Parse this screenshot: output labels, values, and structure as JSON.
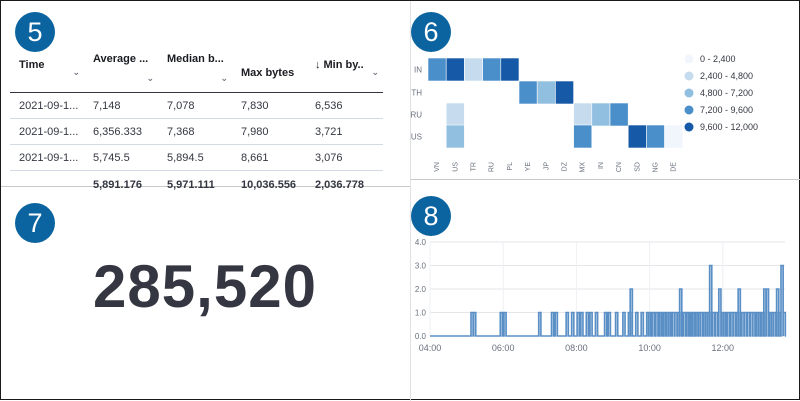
{
  "badges": {
    "table": "5",
    "heatmap": "6",
    "metric": "7",
    "line": "8"
  },
  "table": {
    "columns": [
      "Time",
      "Average ...",
      "Median b...",
      "Max bytes",
      "Min by..."
    ],
    "sort_icon": "arrow-down",
    "rows": [
      [
        "2021-09-1...",
        "7,148",
        "7,078",
        "7,830",
        "6,536"
      ],
      [
        "2021-09-1...",
        "6,356.333",
        "7,368",
        "7,980",
        "3,721"
      ],
      [
        "2021-09-1...",
        "5,745.5",
        "5,894.5",
        "8,661",
        "3,076"
      ]
    ],
    "footer": [
      "",
      "5,891.176",
      "5,971.111",
      "10,036.556",
      "2,036.778"
    ]
  },
  "heatmap": {
    "y_categories": [
      "IN",
      "TH",
      "RU",
      "US"
    ],
    "x_categories": [
      "VN",
      "US",
      "TR",
      "RU",
      "PL",
      "YE",
      "JP",
      "DZ",
      "MX",
      "IN",
      "CN",
      "SD",
      "NG",
      "DE"
    ],
    "cells": [
      {
        "row": "IN",
        "col": "VN",
        "bin": 3
      },
      {
        "row": "IN",
        "col": "US",
        "bin": 4
      },
      {
        "row": "IN",
        "col": "TR",
        "bin": 1
      },
      {
        "row": "IN",
        "col": "RU",
        "bin": 3
      },
      {
        "row": "IN",
        "col": "PL",
        "bin": 4
      },
      {
        "row": "TH",
        "col": "YE",
        "bin": 3
      },
      {
        "row": "TH",
        "col": "JP",
        "bin": 2
      },
      {
        "row": "TH",
        "col": "DZ",
        "bin": 4
      },
      {
        "row": "RU",
        "col": "US",
        "bin": 1
      },
      {
        "row": "RU",
        "col": "MX",
        "bin": 1
      },
      {
        "row": "RU",
        "col": "IN",
        "bin": 2
      },
      {
        "row": "RU",
        "col": "CN",
        "bin": 3
      },
      {
        "row": "US",
        "col": "US",
        "bin": 2
      },
      {
        "row": "US",
        "col": "MX",
        "bin": 3
      },
      {
        "row": "US",
        "col": "SD",
        "bin": 4
      },
      {
        "row": "US",
        "col": "NG",
        "bin": 3
      },
      {
        "row": "US",
        "col": "DE",
        "bin": 0
      }
    ],
    "legend": [
      "0 - 2,400",
      "2,400 - 4,800",
      "4,800 - 7,200",
      "7,200 - 9,600",
      "9,600 - 12,000"
    ],
    "colors": [
      "#f0f6fb",
      "#c6dcee",
      "#91bfe0",
      "#4a8fc9",
      "#1659a6"
    ]
  },
  "metric": {
    "value": "285,520"
  },
  "chart_data": {
    "type": "area",
    "x_ticks": [
      "04:00",
      "06:00",
      "08:00",
      "10:00",
      "12:00"
    ],
    "y_ticks": [
      "0.0",
      "1.0",
      "2.0",
      "3.0",
      "4.0"
    ],
    "ylim": [
      0,
      4
    ],
    "xlim": [
      4.0,
      13.7
    ],
    "x_unit": "hour",
    "grid": true,
    "color": "#5a8fc6",
    "spikes": [
      [
        5.15,
        1
      ],
      [
        5.22,
        1
      ],
      [
        5.95,
        1
      ],
      [
        6.05,
        1
      ],
      [
        7.0,
        1
      ],
      [
        7.35,
        1
      ],
      [
        7.45,
        1
      ],
      [
        7.75,
        1
      ],
      [
        7.9,
        1
      ],
      [
        8.05,
        1
      ],
      [
        8.15,
        1
      ],
      [
        8.3,
        1
      ],
      [
        8.4,
        1
      ],
      [
        8.55,
        1
      ],
      [
        8.8,
        1
      ],
      [
        8.9,
        1
      ],
      [
        9.1,
        1
      ],
      [
        9.3,
        1
      ],
      [
        9.45,
        1
      ],
      [
        9.5,
        2
      ],
      [
        9.65,
        1
      ],
      [
        9.8,
        1
      ],
      [
        9.95,
        1
      ],
      [
        10.0,
        1
      ],
      [
        10.1,
        1
      ],
      [
        10.2,
        1
      ],
      [
        10.3,
        1
      ],
      [
        10.35,
        1
      ],
      [
        10.4,
        1
      ],
      [
        10.5,
        1
      ],
      [
        10.55,
        1
      ],
      [
        10.65,
        1
      ],
      [
        10.72,
        1
      ],
      [
        10.8,
        1
      ],
      [
        10.85,
        2
      ],
      [
        10.95,
        1
      ],
      [
        11.05,
        1
      ],
      [
        11.1,
        1
      ],
      [
        11.15,
        1
      ],
      [
        11.2,
        1
      ],
      [
        11.3,
        1
      ],
      [
        11.35,
        1
      ],
      [
        11.42,
        1
      ],
      [
        11.5,
        1
      ],
      [
        11.55,
        1
      ],
      [
        11.62,
        1
      ],
      [
        11.67,
        3
      ],
      [
        11.75,
        1
      ],
      [
        11.83,
        1
      ],
      [
        11.92,
        2
      ],
      [
        12.0,
        1
      ],
      [
        12.05,
        1
      ],
      [
        12.15,
        1
      ],
      [
        12.25,
        1
      ],
      [
        12.32,
        1
      ],
      [
        12.4,
        1
      ],
      [
        12.45,
        2
      ],
      [
        12.55,
        1
      ],
      [
        12.62,
        1
      ],
      [
        12.7,
        1
      ],
      [
        12.78,
        1
      ],
      [
        12.85,
        1
      ],
      [
        12.95,
        1
      ],
      [
        13.0,
        1
      ],
      [
        13.1,
        1
      ],
      [
        13.15,
        2
      ],
      [
        13.22,
        2
      ],
      [
        13.3,
        1
      ],
      [
        13.35,
        1
      ],
      [
        13.42,
        1
      ],
      [
        13.5,
        2
      ],
      [
        13.55,
        1
      ],
      [
        13.62,
        3
      ],
      [
        13.68,
        1
      ]
    ]
  }
}
